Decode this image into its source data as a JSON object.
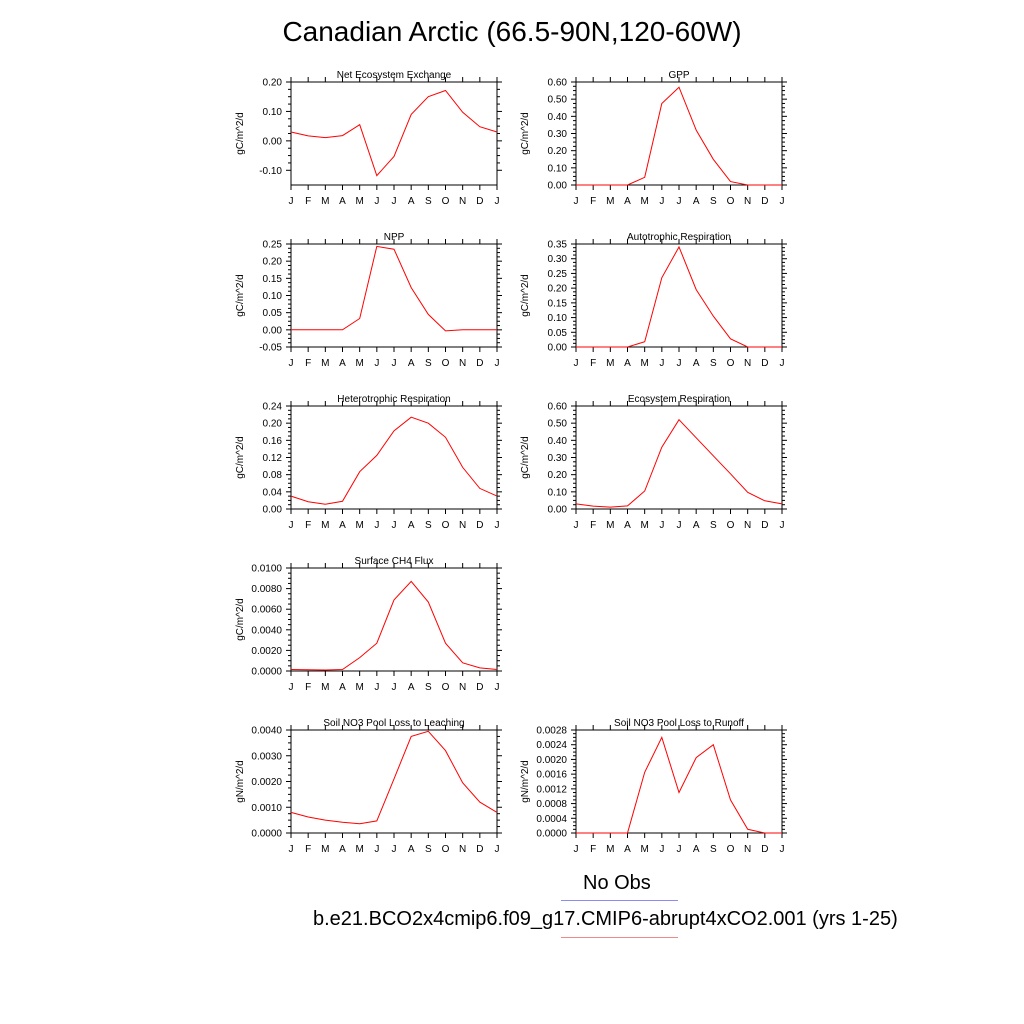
{
  "title": "Canadian Arctic (66.5-90N,120-60W)",
  "legend": {
    "obs_label": "No Obs",
    "case_label": "b.e21.BCO2x4cmip6.f09_g17.CMIP6-abrupt4xCO2.001 (yrs 1-25)",
    "obs_color": "#8a8cf0",
    "case_color": "#f08a8a"
  },
  "chart_data": [
    {
      "type": "line",
      "title": "Net Ecosystem Exchange",
      "ylabel": "gC/m^2/d",
      "categories": [
        "J",
        "F",
        "M",
        "A",
        "M",
        "J",
        "J",
        "A",
        "S",
        "O",
        "N",
        "D",
        "J"
      ],
      "ylim": [
        -0.15,
        0.2
      ],
      "yticks": [
        -0.1,
        0.0,
        0.1,
        0.2
      ],
      "ytick_labels": [
        "-0.10",
        "0.00",
        "0.10",
        "0.20"
      ],
      "series": [
        {
          "color": "#ff0000",
          "values": [
            0.03,
            0.017,
            0.011,
            0.018,
            0.055,
            -0.118,
            -0.053,
            0.09,
            0.15,
            0.171,
            0.097,
            0.048,
            0.03
          ]
        }
      ]
    },
    {
      "type": "line",
      "title": "GPP",
      "ylabel": "gC/m^2/d",
      "categories": [
        "J",
        "F",
        "M",
        "A",
        "M",
        "J",
        "J",
        "A",
        "S",
        "O",
        "N",
        "D",
        "J"
      ],
      "ylim": [
        0.0,
        0.6
      ],
      "yticks": [
        0.0,
        0.1,
        0.2,
        0.3,
        0.4,
        0.5,
        0.6
      ],
      "ytick_labels": [
        "0.00",
        "0.10",
        "0.20",
        "0.30",
        "0.40",
        "0.50",
        "0.60"
      ],
      "series": [
        {
          "color": "#ff0000",
          "values": [
            0.0,
            0.0,
            0.0,
            0.0,
            0.045,
            0.475,
            0.57,
            0.32,
            0.15,
            0.02,
            0.0,
            0.0,
            0.0
          ]
        }
      ]
    },
    {
      "type": "line",
      "title": "NPP",
      "ylabel": "gC/m^2/d",
      "categories": [
        "J",
        "F",
        "M",
        "A",
        "M",
        "J",
        "J",
        "A",
        "S",
        "O",
        "N",
        "D",
        "J"
      ],
      "ylim": [
        -0.05,
        0.25
      ],
      "yticks": [
        -0.05,
        0.0,
        0.05,
        0.1,
        0.15,
        0.2,
        0.25
      ],
      "ytick_labels": [
        "-0.05",
        "0.00",
        "0.05",
        "0.10",
        "0.15",
        "0.20",
        "0.25"
      ],
      "series": [
        {
          "color": "#ff0000",
          "values": [
            0.0,
            0.0,
            0.0,
            0.0,
            0.033,
            0.243,
            0.235,
            0.123,
            0.045,
            -0.003,
            0.0,
            0.0,
            0.0
          ]
        }
      ]
    },
    {
      "type": "line",
      "title": "Autotrophic Respiration",
      "ylabel": "gC/m^2/d",
      "categories": [
        "J",
        "F",
        "M",
        "A",
        "M",
        "J",
        "J",
        "A",
        "S",
        "O",
        "N",
        "D",
        "J"
      ],
      "ylim": [
        0.0,
        0.35
      ],
      "yticks": [
        0.0,
        0.05,
        0.1,
        0.15,
        0.2,
        0.25,
        0.3,
        0.35
      ],
      "ytick_labels": [
        "0.00",
        "0.05",
        "0.10",
        "0.15",
        "0.20",
        "0.25",
        "0.30",
        "0.35"
      ],
      "series": [
        {
          "color": "#ff0000",
          "values": [
            0.0,
            0.0,
            0.0,
            0.0,
            0.018,
            0.235,
            0.34,
            0.195,
            0.105,
            0.028,
            0.0,
            0.0,
            0.0
          ]
        }
      ]
    },
    {
      "type": "line",
      "title": "Heterotrophic Respiration",
      "ylabel": "gC/m^2/d",
      "categories": [
        "J",
        "F",
        "M",
        "A",
        "M",
        "J",
        "J",
        "A",
        "S",
        "O",
        "N",
        "D",
        "J"
      ],
      "ylim": [
        0.0,
        0.24
      ],
      "yticks": [
        0.0,
        0.04,
        0.08,
        0.12,
        0.16,
        0.2,
        0.24
      ],
      "ytick_labels": [
        "0.00",
        "0.04",
        "0.08",
        "0.12",
        "0.16",
        "0.20",
        "0.24"
      ],
      "series": [
        {
          "color": "#ff0000",
          "values": [
            0.03,
            0.017,
            0.011,
            0.018,
            0.087,
            0.125,
            0.182,
            0.214,
            0.2,
            0.167,
            0.097,
            0.048,
            0.03
          ]
        }
      ]
    },
    {
      "type": "line",
      "title": "Ecosystem Respiration",
      "ylabel": "gC/m^2/d",
      "categories": [
        "J",
        "F",
        "M",
        "A",
        "M",
        "J",
        "J",
        "A",
        "S",
        "O",
        "N",
        "D",
        "J"
      ],
      "ylim": [
        0.0,
        0.6
      ],
      "yticks": [
        0.0,
        0.1,
        0.2,
        0.3,
        0.4,
        0.5,
        0.6
      ],
      "ytick_labels": [
        "0.00",
        "0.10",
        "0.20",
        "0.30",
        "0.40",
        "0.50",
        "0.60"
      ],
      "series": [
        {
          "color": "#ff0000",
          "values": [
            0.03,
            0.017,
            0.011,
            0.018,
            0.105,
            0.36,
            0.52,
            0.415,
            0.31,
            0.205,
            0.097,
            0.048,
            0.03
          ]
        }
      ]
    },
    {
      "type": "line",
      "title": "Surface CH4 Flux",
      "ylabel": "gC/m^2/d",
      "categories": [
        "J",
        "F",
        "M",
        "A",
        "M",
        "J",
        "J",
        "A",
        "S",
        "O",
        "N",
        "D",
        "J"
      ],
      "ylim": [
        0.0,
        0.01
      ],
      "yticks": [
        0.0,
        0.002,
        0.004,
        0.006,
        0.008,
        0.01
      ],
      "ytick_labels": [
        "0.0000",
        "0.0020",
        "0.0040",
        "0.0060",
        "0.0080",
        "0.0100"
      ],
      "series": [
        {
          "color": "#ff0000",
          "values": [
            0.00015,
            0.00012,
            0.0001,
            0.00015,
            0.0013,
            0.0027,
            0.0069,
            0.0087,
            0.0067,
            0.0027,
            0.0008,
            0.0003,
            0.00015
          ]
        }
      ]
    },
    {
      "type": "line",
      "title": "Soil NO3 Pool Loss to Leaching",
      "ylabel": "gN/m^2/d",
      "categories": [
        "J",
        "F",
        "M",
        "A",
        "M",
        "J",
        "J",
        "A",
        "S",
        "O",
        "N",
        "D",
        "J"
      ],
      "ylim": [
        0.0,
        0.004
      ],
      "yticks": [
        0.0,
        0.001,
        0.002,
        0.003,
        0.004
      ],
      "ytick_labels": [
        "0.0000",
        "0.0010",
        "0.0020",
        "0.0030",
        "0.0040"
      ],
      "series": [
        {
          "color": "#ff0000",
          "values": [
            0.0008,
            0.00062,
            0.0005,
            0.00042,
            0.00036,
            0.00047,
            0.0021,
            0.00375,
            0.00395,
            0.0032,
            0.00195,
            0.0012,
            0.0008
          ]
        }
      ]
    },
    {
      "type": "line",
      "title": "Soil NO3 Pool Loss to Runoff",
      "ylabel": "gN/m^2/d",
      "categories": [
        "J",
        "F",
        "M",
        "A",
        "M",
        "J",
        "J",
        "A",
        "S",
        "O",
        "N",
        "D",
        "J"
      ],
      "ylim": [
        0.0,
        0.0028
      ],
      "yticks": [
        0.0,
        0.0004,
        0.0008,
        0.0012,
        0.0016,
        0.002,
        0.0024,
        0.0028
      ],
      "ytick_labels": [
        "0.0000",
        "0.0004",
        "0.0008",
        "0.0012",
        "0.0016",
        "0.0020",
        "0.0024",
        "0.0028"
      ],
      "series": [
        {
          "color": "#ff0000",
          "values": [
            0.0,
            0.0,
            0.0,
            0.0,
            0.00165,
            0.0026,
            0.0011,
            0.00205,
            0.0024,
            0.0009,
            0.0001,
            0.0,
            0.0
          ]
        }
      ]
    }
  ]
}
